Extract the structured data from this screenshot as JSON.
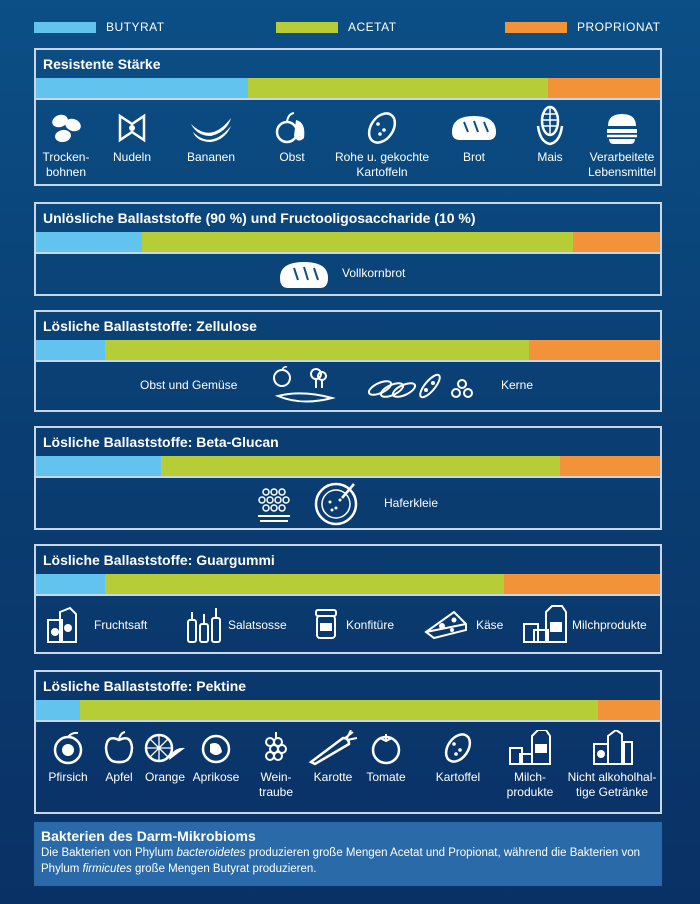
{
  "legend": [
    {
      "label": "BUTYRAT",
      "color": "#62c3ee"
    },
    {
      "label": "ACETAT",
      "color": "#b6cd37"
    },
    {
      "label": "PROPRIONAT",
      "color": "#f2933a"
    }
  ],
  "chart_data": {
    "type": "bar",
    "stacked": true,
    "orientation": "horizontal",
    "categories": [
      "Resistente Stärke",
      "Unlösliche Ballaststoffe (90 %) und Fructooligosaccharide (10 %)",
      "Lösliche Ballaststoffe: Zellulose",
      "Lösliche Ballaststoffe: Beta-Glucan",
      "Lösliche Ballaststoffe: Guargummi",
      "Lösliche Ballaststoffe: Pektine"
    ],
    "series": [
      {
        "name": "BUTYRAT",
        "values": [
          34,
          17,
          11,
          20,
          11,
          7
        ]
      },
      {
        "name": "ACETAT",
        "values": [
          48,
          69,
          68,
          64,
          64,
          83
        ]
      },
      {
        "name": "PROPRIONAT",
        "values": [
          18,
          14,
          21,
          16,
          25,
          10
        ]
      }
    ]
  },
  "panels": {
    "staerke": {
      "items": [
        "Trocken-\nbohnen",
        "Nudeln",
        "Bananen",
        "Obst",
        "Rohe u. gekochte\nKartoffeln",
        "Brot",
        "Mais",
        "Verarbeitete\nLebensmittel"
      ]
    },
    "unloeslich": {
      "items": [
        "Vollkornbrot"
      ]
    },
    "zellulose": {
      "items": [
        "Obst und Gemüse",
        "Kerne"
      ]
    },
    "betaglucan": {
      "items": [
        "Haferkleie"
      ]
    },
    "guargummi": {
      "items": [
        "Fruchtsaft",
        "Salatsosse",
        "Konfitüre",
        "Käse",
        "Milchprodukte"
      ]
    },
    "pektine": {
      "items": [
        "Pfirsich",
        "Apfel",
        "Orange",
        "Aprikose",
        "Wein-\ntraube",
        "Karotte",
        "Tomate",
        "Kartoffel",
        "Milch-\nprodukte",
        "Nicht alkoholhal-\ntige Getränke"
      ]
    }
  },
  "footer": {
    "title": "Bakterien des Darm-Mikrobioms",
    "t1": "Die Bakterien von Phylum ",
    "t1_italic": "bacteroidetes",
    "t2": " produzieren große Mengen Acetat und Propionat, während die Bakterien von Phylum ",
    "t2_italic": "firmicutes",
    "t3": " große Mengen Butyrat produzieren."
  }
}
